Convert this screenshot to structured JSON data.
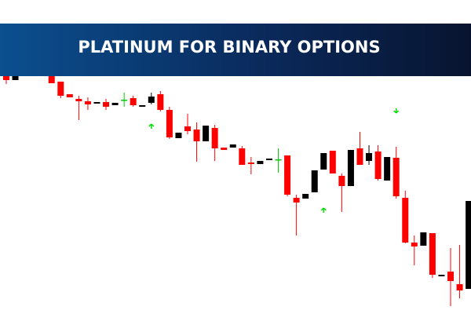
{
  "chart_data": {
    "type": "candlestick",
    "title": "PLATINUM FOR BINARY OPTIONS",
    "x": [
      0,
      1,
      5,
      6,
      7,
      8,
      9,
      10,
      11,
      12,
      13,
      14,
      15,
      16,
      17,
      18,
      19,
      20,
      21,
      22,
      23,
      24,
      25,
      26,
      27,
      28,
      29,
      30,
      31,
      32,
      33,
      34,
      35,
      36,
      37,
      38,
      39,
      40,
      41,
      42,
      43,
      44,
      45,
      46,
      47,
      48,
      49,
      50,
      51
    ],
    "open": [
      303,
      298,
      303,
      296,
      280,
      274,
      271,
      268,
      270,
      266,
      273,
      275,
      264,
      269,
      280,
      260,
      224,
      239,
      235,
      220,
      237,
      212,
      212,
      211,
      193,
      191,
      196,
      197,
      202,
      148,
      147,
      155,
      184,
      208,
      176,
      163,
      211,
      195,
      207,
      170,
      199,
      148,
      91,
      87,
      103,
      48,
      54,
      38,
      32
    ],
    "high": [
      303,
      303,
      303,
      296,
      280,
      278,
      276,
      270,
      274,
      269,
      282,
      278,
      266,
      282,
      284,
      264,
      231,
      255,
      244,
      240,
      241,
      212,
      216,
      214,
      200,
      195,
      198,
      211,
      202,
      152,
      153,
      183,
      205,
      208,
      179,
      209,
      232,
      215,
      215,
      200,
      213,
      157,
      100,
      104,
      103,
      50,
      84,
      88,
      144
    ],
    "low": [
      293,
      298,
      294,
      275,
      276,
      247,
      260,
      268,
      260,
      266,
      264,
      264,
      264,
      267,
      258,
      223,
      224,
      229,
      194,
      220,
      195,
      209,
      212,
      190,
      178,
      191,
      196,
      180,
      150,
      100,
      147,
      155,
      184,
      179,
      130,
      163,
      190,
      190,
      170,
      170,
      147,
      90,
      62,
      87,
      46,
      48,
      10,
      20,
      32
    ],
    "close": [
      298,
      303,
      294,
      278,
      276,
      271,
      267,
      270,
      264,
      269,
      273,
      266,
      266,
      277,
      260,
      225,
      231,
      233,
      220,
      240,
      211,
      209,
      216,
      190,
      191,
      195,
      198,
      197,
      152,
      142,
      153,
      183,
      205,
      179,
      163,
      209,
      190,
      205,
      172,
      200,
      150,
      91,
      86,
      104,
      50,
      50,
      42,
      30,
      144
    ],
    "xlim": [
      -0.69,
      51.25
    ],
    "ylim": [
      0,
      400
    ],
    "colors": {
      "up": "#000000",
      "down": "#ff0000",
      "doji": "#00cc00",
      "signal": "#00e000"
    },
    "signals": [
      {
        "x": 16,
        "price": 239,
        "direction": "up"
      },
      {
        "x": 35,
        "price": 132,
        "direction": "up"
      },
      {
        "x": 43,
        "price": 259,
        "direction": "down"
      }
    ]
  }
}
